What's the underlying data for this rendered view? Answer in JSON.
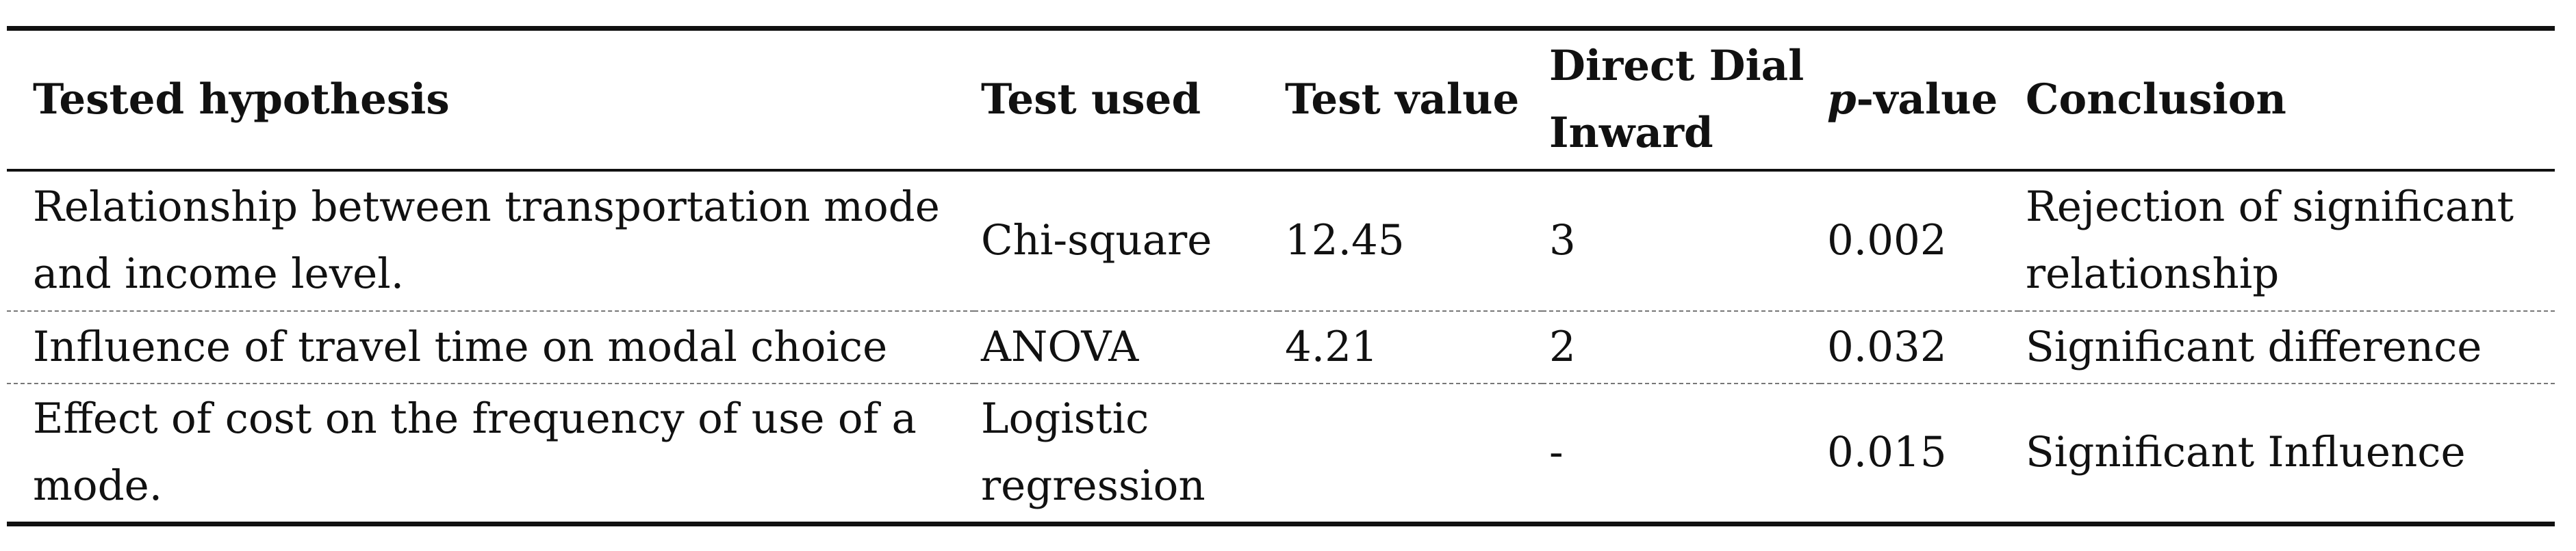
{
  "table": {
    "header": [
      "Tested hypothesis",
      "Test used",
      "Test value",
      "Direct Dial Inward",
      [
        "p",
        "-value"
      ],
      "Conclusion"
    ],
    "rows": [
      [
        "Relationship between transportation mode and income level.",
        "Chi-square",
        "12.45",
        "3",
        "0.002",
        "Rejection of significant relationship"
      ],
      [
        "Influence of travel time on modal choice",
        "ANOVA",
        "4.21",
        "2",
        "0.032",
        "Significant difference"
      ],
      [
        "Effect of cost on the frequency of use of a mode.",
        "Logistic regression",
        null,
        "-",
        "0.015",
        "Significant Influence"
      ]
    ]
  }
}
